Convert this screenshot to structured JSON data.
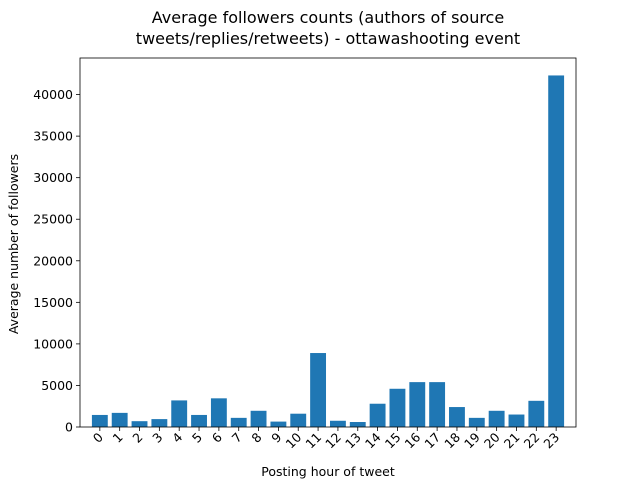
{
  "chart_data": {
    "type": "bar",
    "title_lines": [
      "Average followers counts (authors of source",
      "tweets/replies/retweets) - ottawashooting event"
    ],
    "xlabel": "Posting hour of tweet",
    "ylabel": "Average number of followers",
    "categories": [
      "0",
      "1",
      "2",
      "3",
      "4",
      "5",
      "6",
      "7",
      "8",
      "9",
      "10",
      "11",
      "12",
      "13",
      "14",
      "15",
      "16",
      "17",
      "18",
      "19",
      "20",
      "21",
      "22",
      "23"
    ],
    "values": [
      1450,
      1700,
      700,
      950,
      3200,
      1450,
      3450,
      1100,
      1950,
      650,
      1600,
      8900,
      750,
      600,
      2800,
      4600,
      5400,
      5400,
      2400,
      1100,
      1950,
      1500,
      3150,
      42300
    ],
    "ylim": [
      0,
      44400
    ],
    "yticks": [
      0,
      5000,
      10000,
      15000,
      20000,
      25000,
      30000,
      35000,
      40000
    ],
    "bar_color": "#1f77b4",
    "grid": false
  }
}
